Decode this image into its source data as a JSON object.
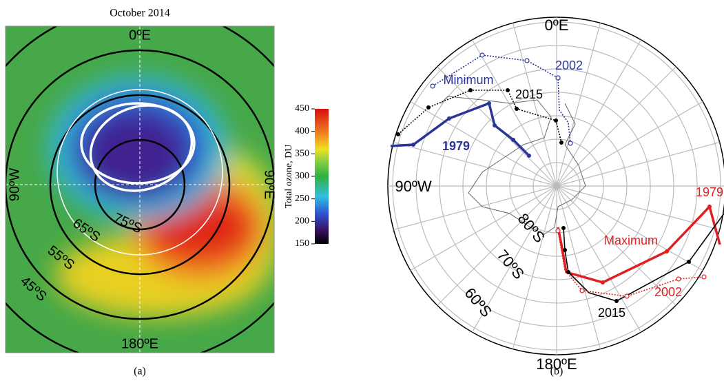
{
  "panel_a": {
    "title": "October 2014",
    "labels": {
      "top": "0ºE",
      "right": "90ºE",
      "left": "90ºW",
      "bottom": "180ºE",
      "lat75": "75ºS",
      "lat65": "65ºS",
      "lat55": "55ºS",
      "lat45": "45ºS"
    },
    "colorbar": {
      "label": "Total ozone, DU",
      "lim": [
        150,
        450
      ],
      "ticks": [
        150,
        200,
        250,
        300,
        350,
        400,
        450
      ]
    },
    "caption": "(a)"
  },
  "panel_b": {
    "labels": {
      "top": "0ºE",
      "left": "90ºW",
      "bottom": "180ºE",
      "lat80": "80ºS",
      "lat70": "70ºS",
      "lat60": "60ºS",
      "minimum": "Minimum",
      "maximum": "Maximum",
      "min_1979": "1979",
      "min_2002": "2002",
      "min_2015": "2015",
      "max_1979": "1979",
      "max_2002": "2002",
      "max_2015": "2015"
    },
    "caption": "(b)"
  }
}
